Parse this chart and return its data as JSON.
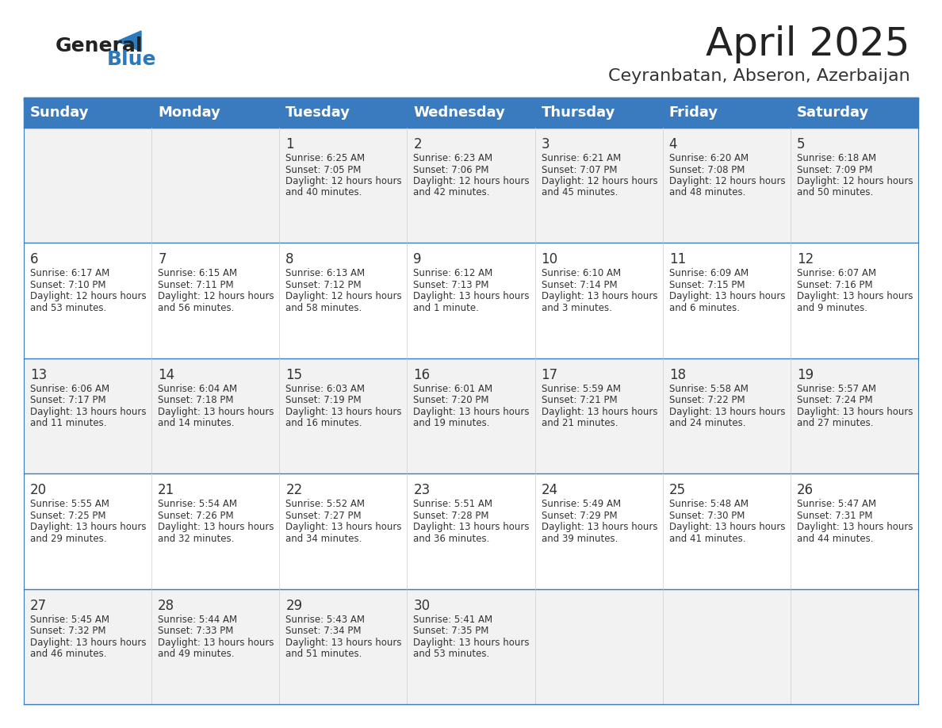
{
  "title": "April 2025",
  "subtitle": "Ceyranbatan, Abseron, Azerbaijan",
  "days_of_week": [
    "Sunday",
    "Monday",
    "Tuesday",
    "Wednesday",
    "Thursday",
    "Friday",
    "Saturday"
  ],
  "header_bg": "#3a7abf",
  "header_text_color": "#ffffff",
  "row_bg_even": "#f2f2f2",
  "row_bg_odd": "#ffffff",
  "cell_text_color": "#333333",
  "border_color": "#3a7abf",
  "title_color": "#222222",
  "subtitle_color": "#333333",
  "logo_general_color": "#222222",
  "logo_blue_color": "#2a7abf",
  "calendar_data": [
    [
      null,
      null,
      {
        "day": 1,
        "sunrise": "6:25 AM",
        "sunset": "7:05 PM",
        "daylight": "12 hours and 40 minutes."
      },
      {
        "day": 2,
        "sunrise": "6:23 AM",
        "sunset": "7:06 PM",
        "daylight": "12 hours and 42 minutes."
      },
      {
        "day": 3,
        "sunrise": "6:21 AM",
        "sunset": "7:07 PM",
        "daylight": "12 hours and 45 minutes."
      },
      {
        "day": 4,
        "sunrise": "6:20 AM",
        "sunset": "7:08 PM",
        "daylight": "12 hours and 48 minutes."
      },
      {
        "day": 5,
        "sunrise": "6:18 AM",
        "sunset": "7:09 PM",
        "daylight": "12 hours and 50 minutes."
      }
    ],
    [
      {
        "day": 6,
        "sunrise": "6:17 AM",
        "sunset": "7:10 PM",
        "daylight": "12 hours and 53 minutes."
      },
      {
        "day": 7,
        "sunrise": "6:15 AM",
        "sunset": "7:11 PM",
        "daylight": "12 hours and 56 minutes."
      },
      {
        "day": 8,
        "sunrise": "6:13 AM",
        "sunset": "7:12 PM",
        "daylight": "12 hours and 58 minutes."
      },
      {
        "day": 9,
        "sunrise": "6:12 AM",
        "sunset": "7:13 PM",
        "daylight": "13 hours and 1 minute."
      },
      {
        "day": 10,
        "sunrise": "6:10 AM",
        "sunset": "7:14 PM",
        "daylight": "13 hours and 3 minutes."
      },
      {
        "day": 11,
        "sunrise": "6:09 AM",
        "sunset": "7:15 PM",
        "daylight": "13 hours and 6 minutes."
      },
      {
        "day": 12,
        "sunrise": "6:07 AM",
        "sunset": "7:16 PM",
        "daylight": "13 hours and 9 minutes."
      }
    ],
    [
      {
        "day": 13,
        "sunrise": "6:06 AM",
        "sunset": "7:17 PM",
        "daylight": "13 hours and 11 minutes."
      },
      {
        "day": 14,
        "sunrise": "6:04 AM",
        "sunset": "7:18 PM",
        "daylight": "13 hours and 14 minutes."
      },
      {
        "day": 15,
        "sunrise": "6:03 AM",
        "sunset": "7:19 PM",
        "daylight": "13 hours and 16 minutes."
      },
      {
        "day": 16,
        "sunrise": "6:01 AM",
        "sunset": "7:20 PM",
        "daylight": "13 hours and 19 minutes."
      },
      {
        "day": 17,
        "sunrise": "5:59 AM",
        "sunset": "7:21 PM",
        "daylight": "13 hours and 21 minutes."
      },
      {
        "day": 18,
        "sunrise": "5:58 AM",
        "sunset": "7:22 PM",
        "daylight": "13 hours and 24 minutes."
      },
      {
        "day": 19,
        "sunrise": "5:57 AM",
        "sunset": "7:24 PM",
        "daylight": "13 hours and 27 minutes."
      }
    ],
    [
      {
        "day": 20,
        "sunrise": "5:55 AM",
        "sunset": "7:25 PM",
        "daylight": "13 hours and 29 minutes."
      },
      {
        "day": 21,
        "sunrise": "5:54 AM",
        "sunset": "7:26 PM",
        "daylight": "13 hours and 32 minutes."
      },
      {
        "day": 22,
        "sunrise": "5:52 AM",
        "sunset": "7:27 PM",
        "daylight": "13 hours and 34 minutes."
      },
      {
        "day": 23,
        "sunrise": "5:51 AM",
        "sunset": "7:28 PM",
        "daylight": "13 hours and 36 minutes."
      },
      {
        "day": 24,
        "sunrise": "5:49 AM",
        "sunset": "7:29 PM",
        "daylight": "13 hours and 39 minutes."
      },
      {
        "day": 25,
        "sunrise": "5:48 AM",
        "sunset": "7:30 PM",
        "daylight": "13 hours and 41 minutes."
      },
      {
        "day": 26,
        "sunrise": "5:47 AM",
        "sunset": "7:31 PM",
        "daylight": "13 hours and 44 minutes."
      }
    ],
    [
      {
        "day": 27,
        "sunrise": "5:45 AM",
        "sunset": "7:32 PM",
        "daylight": "13 hours and 46 minutes."
      },
      {
        "day": 28,
        "sunrise": "5:44 AM",
        "sunset": "7:33 PM",
        "daylight": "13 hours and 49 minutes."
      },
      {
        "day": 29,
        "sunrise": "5:43 AM",
        "sunset": "7:34 PM",
        "daylight": "13 hours and 51 minutes."
      },
      {
        "day": 30,
        "sunrise": "5:41 AM",
        "sunset": "7:35 PM",
        "daylight": "13 hours and 53 minutes."
      },
      null,
      null,
      null
    ]
  ]
}
